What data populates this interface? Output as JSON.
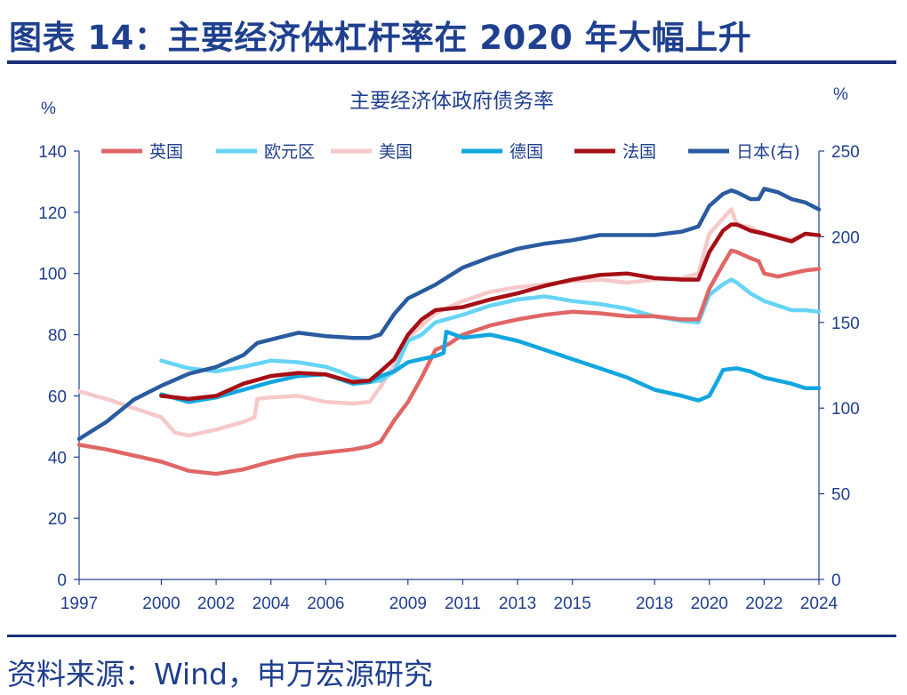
{
  "figure_title": "图表 14：主要经济体杠杆率在 2020 年大幅上升",
  "source": "资料来源：Wind，申万宏源研究",
  "chart_data": {
    "type": "line",
    "title": "主要经济体政府债务率",
    "left_unit": "%",
    "right_unit": "%",
    "ylim": [
      0,
      140
    ],
    "y2lim": [
      0,
      250
    ],
    "yticks": [
      0,
      20,
      40,
      60,
      80,
      100,
      120,
      140
    ],
    "y2ticks": [
      0,
      50,
      100,
      150,
      200,
      250
    ],
    "xlim": [
      1997,
      2024
    ],
    "xticks": [
      1997,
      2000,
      2002,
      2004,
      2006,
      2009,
      2011,
      2013,
      2015,
      2018,
      2020,
      2022,
      2024
    ],
    "legend_position": "top",
    "grid": false,
    "series": [
      {
        "name": "英国",
        "color": "#e06666",
        "axis": "left",
        "points": [
          [
            1997,
            44
          ],
          [
            1998,
            42.5
          ],
          [
            1999,
            40.5
          ],
          [
            2000,
            38.5
          ],
          [
            2001,
            35.5
          ],
          [
            2002,
            34.5
          ],
          [
            2003,
            36
          ],
          [
            2004,
            38.5
          ],
          [
            2005,
            40.5
          ],
          [
            2006,
            41.5
          ],
          [
            2007,
            42.5
          ],
          [
            2007.6,
            43.5
          ],
          [
            2008,
            45
          ],
          [
            2008.5,
            52
          ],
          [
            2009,
            58
          ],
          [
            2009.5,
            66
          ],
          [
            2010,
            75
          ],
          [
            2010.5,
            77
          ],
          [
            2011,
            80
          ],
          [
            2012,
            83
          ],
          [
            2013,
            85
          ],
          [
            2014,
            86.5
          ],
          [
            2015,
            87.5
          ],
          [
            2016,
            87
          ],
          [
            2017,
            86
          ],
          [
            2018,
            86
          ],
          [
            2019,
            85
          ],
          [
            2019.6,
            85
          ],
          [
            2020,
            95
          ],
          [
            2020.5,
            103
          ],
          [
            2020.8,
            107.5
          ],
          [
            2021,
            107
          ],
          [
            2021.5,
            105
          ],
          [
            2021.8,
            104
          ],
          [
            2022,
            100
          ],
          [
            2022.5,
            99
          ],
          [
            2023,
            100
          ],
          [
            2023.5,
            101
          ],
          [
            2024,
            101.5
          ]
        ]
      },
      {
        "name": "欧元区",
        "color": "#66d4f5",
        "axis": "left",
        "points": [
          [
            2000,
            71.5
          ],
          [
            2001,
            69
          ],
          [
            2002,
            68
          ],
          [
            2003,
            69.5
          ],
          [
            2004,
            71.5
          ],
          [
            2005,
            71
          ],
          [
            2006,
            69.5
          ],
          [
            2006.5,
            68
          ],
          [
            2007,
            66
          ],
          [
            2007.6,
            64.5
          ],
          [
            2008,
            65
          ],
          [
            2008.5,
            68
          ],
          [
            2009,
            78
          ],
          [
            2009.5,
            80
          ],
          [
            2010,
            84
          ],
          [
            2011,
            86.5
          ],
          [
            2012,
            89.5
          ],
          [
            2013,
            91.5
          ],
          [
            2014,
            92.5
          ],
          [
            2015,
            91
          ],
          [
            2016,
            90
          ],
          [
            2017,
            88.5
          ],
          [
            2018,
            86
          ],
          [
            2019,
            84.5
          ],
          [
            2019.6,
            84
          ],
          [
            2020,
            93
          ],
          [
            2020.5,
            96.5
          ],
          [
            2020.8,
            98
          ],
          [
            2021,
            97
          ],
          [
            2021.5,
            93.5
          ],
          [
            2022,
            91
          ],
          [
            2023,
            88
          ],
          [
            2023.5,
            88
          ],
          [
            2024,
            87.5
          ]
        ]
      },
      {
        "name": "美国",
        "color": "#f6c9c9",
        "axis": "left",
        "points": [
          [
            1997,
            61.5
          ],
          [
            1998,
            59
          ],
          [
            1999,
            56
          ],
          [
            2000,
            53
          ],
          [
            2000.5,
            48
          ],
          [
            2001,
            47
          ],
          [
            2002,
            49
          ],
          [
            2003,
            51.5
          ],
          [
            2003.4,
            53
          ],
          [
            2003.5,
            59
          ],
          [
            2004,
            59.5
          ],
          [
            2005,
            60
          ],
          [
            2006,
            58
          ],
          [
            2007,
            57.5
          ],
          [
            2007.6,
            58
          ],
          [
            2008,
            63
          ],
          [
            2008.5,
            70
          ],
          [
            2009,
            79
          ],
          [
            2009.5,
            83
          ],
          [
            2010,
            87
          ],
          [
            2011,
            91
          ],
          [
            2012,
            94
          ],
          [
            2013,
            95.5
          ],
          [
            2014,
            96.5
          ],
          [
            2015,
            97.5
          ],
          [
            2016,
            98
          ],
          [
            2017,
            97
          ],
          [
            2018,
            98
          ],
          [
            2019,
            98.5
          ],
          [
            2019.6,
            100
          ],
          [
            2020,
            113
          ],
          [
            2020.5,
            118
          ],
          [
            2020.8,
            121
          ],
          [
            2021,
            116
          ],
          [
            2021.5,
            115
          ],
          [
            2022,
            113
          ],
          [
            2023,
            111
          ],
          [
            2023.5,
            113
          ],
          [
            2024,
            112.5
          ]
        ]
      },
      {
        "name": "德国",
        "color": "#12a6df",
        "axis": "left",
        "points": [
          [
            2000,
            60.5
          ],
          [
            2001,
            58
          ],
          [
            2002,
            59.5
          ],
          [
            2003,
            62
          ],
          [
            2004,
            64.5
          ],
          [
            2005,
            66.5
          ],
          [
            2006,
            67
          ],
          [
            2007,
            64
          ],
          [
            2007.6,
            64.5
          ],
          [
            2008,
            66.5
          ],
          [
            2008.5,
            68
          ],
          [
            2009,
            71
          ],
          [
            2009.5,
            72
          ],
          [
            2010,
            73
          ],
          [
            2010.3,
            74
          ],
          [
            2010.4,
            81
          ],
          [
            2011,
            79
          ],
          [
            2012,
            80
          ],
          [
            2013,
            78
          ],
          [
            2014,
            75
          ],
          [
            2015,
            72
          ],
          [
            2016,
            69
          ],
          [
            2017,
            66
          ],
          [
            2018,
            62
          ],
          [
            2019,
            60
          ],
          [
            2019.6,
            58.5
          ],
          [
            2020,
            60
          ],
          [
            2020.3,
            65
          ],
          [
            2020.5,
            68.5
          ],
          [
            2021,
            69
          ],
          [
            2021.5,
            68
          ],
          [
            2022,
            66
          ],
          [
            2023,
            64
          ],
          [
            2023.5,
            62.5
          ],
          [
            2024,
            62.5
          ]
        ]
      },
      {
        "name": "法国",
        "color": "#a50f15",
        "axis": "left",
        "points": [
          [
            2000,
            60
          ],
          [
            2001,
            59
          ],
          [
            2002,
            60
          ],
          [
            2003,
            64
          ],
          [
            2004,
            66.5
          ],
          [
            2005,
            67.5
          ],
          [
            2006,
            67
          ],
          [
            2007,
            64.5
          ],
          [
            2007.6,
            65
          ],
          [
            2008,
            68
          ],
          [
            2008.5,
            72
          ],
          [
            2009,
            80
          ],
          [
            2009.5,
            85
          ],
          [
            2010,
            88
          ],
          [
            2011,
            89
          ],
          [
            2012,
            91.5
          ],
          [
            2013,
            93.5
          ],
          [
            2014,
            96
          ],
          [
            2015,
            98
          ],
          [
            2016,
            99.5
          ],
          [
            2017,
            100
          ],
          [
            2018,
            98.5
          ],
          [
            2019,
            98
          ],
          [
            2019.6,
            98
          ],
          [
            2020,
            107
          ],
          [
            2020.5,
            114
          ],
          [
            2020.8,
            116
          ],
          [
            2021,
            116
          ],
          [
            2021.5,
            114
          ],
          [
            2022,
            113
          ],
          [
            2023,
            110.5
          ],
          [
            2023.5,
            113
          ],
          [
            2024,
            112.5
          ]
        ]
      },
      {
        "name": "日本(右)",
        "color": "#2a5ba0",
        "axis": "right",
        "points": [
          [
            1997,
            82
          ],
          [
            1998,
            92
          ],
          [
            1999,
            105
          ],
          [
            2000,
            113
          ],
          [
            2001,
            120
          ],
          [
            2002,
            124
          ],
          [
            2003,
            131
          ],
          [
            2003.5,
            138
          ],
          [
            2004,
            140
          ],
          [
            2005,
            144
          ],
          [
            2006,
            142
          ],
          [
            2007,
            141
          ],
          [
            2007.6,
            141
          ],
          [
            2008,
            143
          ],
          [
            2008.5,
            155
          ],
          [
            2009,
            164
          ],
          [
            2009.5,
            168
          ],
          [
            2010,
            172
          ],
          [
            2010.5,
            177
          ],
          [
            2011,
            182
          ],
          [
            2012,
            188
          ],
          [
            2013,
            193
          ],
          [
            2014,
            196
          ],
          [
            2015,
            198
          ],
          [
            2016,
            201
          ],
          [
            2017,
            201
          ],
          [
            2018,
            201
          ],
          [
            2019,
            203
          ],
          [
            2019.6,
            206
          ],
          [
            2020,
            218
          ],
          [
            2020.5,
            225
          ],
          [
            2020.8,
            227
          ],
          [
            2021,
            226
          ],
          [
            2021.5,
            222
          ],
          [
            2021.8,
            222
          ],
          [
            2022,
            228
          ],
          [
            2022.5,
            226
          ],
          [
            2023,
            222
          ],
          [
            2023.5,
            220
          ],
          [
            2024,
            216
          ]
        ]
      }
    ]
  }
}
